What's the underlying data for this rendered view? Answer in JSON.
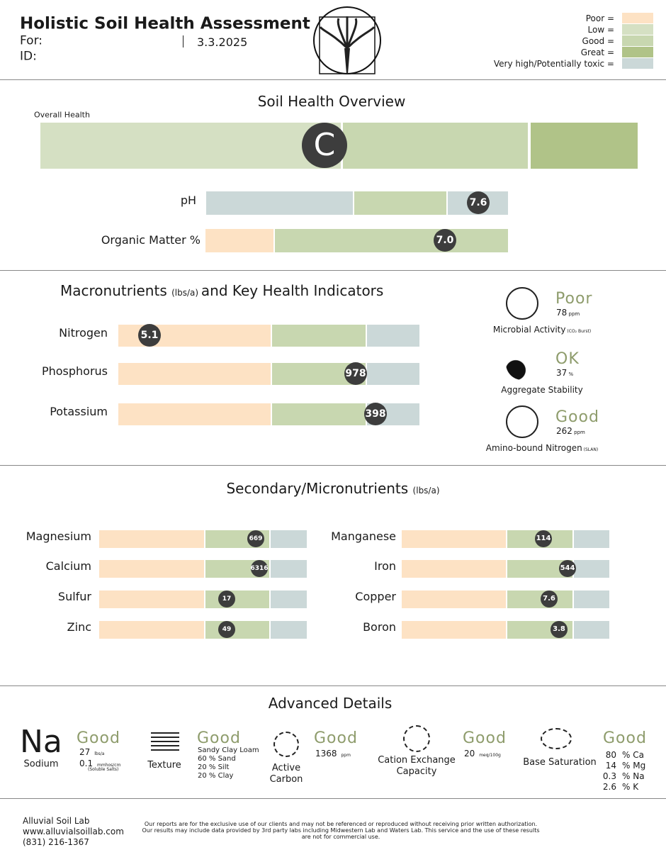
{
  "header": {
    "title": "Holistic Soil Health Assessment",
    "for_label": "For:",
    "id_label": "ID:",
    "date": "3.3.2025"
  },
  "legend": [
    {
      "label": "Poor =",
      "color": "#fde2c4"
    },
    {
      "label": "Low =",
      "color": "#d5e0c3"
    },
    {
      "label": "Good =",
      "color": "#c8d7b0"
    },
    {
      "label": "Great =",
      "color": "#b0c388"
    },
    {
      "label": "Very high/Potentially toxic =",
      "color": "#cbd8d8"
    }
  ],
  "overview": {
    "title": "Soil Health Overview",
    "overall_label": "Overall Health",
    "grade": "C",
    "ph": {
      "label": "pH",
      "value": "7.6"
    },
    "organic_matter": {
      "label": "Organic Matter %",
      "value": "7.0"
    }
  },
  "macronutrients": {
    "title": "Macronutrients",
    "unit": "(lbs/a)",
    "title_end": "and Key Health Indicators",
    "rows": [
      {
        "name": "Nitrogen",
        "value": "5.1"
      },
      {
        "name": "Phosphorus",
        "value": "978"
      },
      {
        "name": "Potassium",
        "value": "398"
      }
    ]
  },
  "indicators": [
    {
      "rating": "Poor",
      "value": "78",
      "unit": "ppm",
      "label": "Microbial Activity",
      "note": "(CO₂ Burst)"
    },
    {
      "rating": "OK",
      "value": "37",
      "unit": "%",
      "label": "Aggregate Stability"
    },
    {
      "rating": "Good",
      "value": "262",
      "unit": "ppm",
      "label": "Amino-bound Nitrogen",
      "note": "(SLAN)"
    }
  ],
  "secondary": {
    "title": "Secondary/Micronutrients",
    "unit": "(lbs/a)",
    "left": [
      {
        "name": "Magnesium",
        "value": "669"
      },
      {
        "name": "Calcium",
        "value": "6316"
      },
      {
        "name": "Sulfur",
        "value": "17"
      },
      {
        "name": "Zinc",
        "value": "49"
      }
    ],
    "right": [
      {
        "name": "Manganese",
        "value": "114"
      },
      {
        "name": "Iron",
        "value": "544"
      },
      {
        "name": "Copper",
        "value": "7.6"
      },
      {
        "name": "Boron",
        "value": "3.8"
      }
    ]
  },
  "advanced": {
    "title": "Advanced Details",
    "items": [
      {
        "symbol": "Na",
        "label": "Sodium",
        "rating": "Good",
        "lines": [
          {
            "value": "27",
            "unit": "lbs/a"
          },
          {
            "value": "0.1",
            "unit": "mmhos/cm",
            "note": "(Soluble Salts)"
          }
        ]
      },
      {
        "label": "Texture",
        "rating": "Good",
        "lines": [
          {
            "value": "Sandy Clay Loam"
          },
          {
            "value": "60 % Sand"
          },
          {
            "value": "20 % Silt"
          },
          {
            "value": "20 % Clay"
          }
        ]
      },
      {
        "label": "Active Carbon",
        "rating": "Good",
        "lines": [
          {
            "value": "1368",
            "unit": "ppm"
          }
        ]
      },
      {
        "label": "Cation Exchange Capacity",
        "rating": "Good",
        "lines": [
          {
            "value": "20",
            "unit": "meq/100g"
          }
        ]
      },
      {
        "label": "Base Saturation",
        "rating": "Good",
        "lines": [
          {
            "value": "80",
            "unit": "% Ca"
          },
          {
            "value": "14",
            "unit": "% Mg"
          },
          {
            "value": "0.3",
            "unit": "% Na"
          },
          {
            "value": "2.6",
            "unit": "% K"
          }
        ]
      }
    ]
  },
  "footer": {
    "company": [
      "Alluvial Soil Lab",
      "www.alluvialsoillab.com",
      "(831) 216-1367"
    ],
    "disclaimer": [
      "Our reports are for the exclusive use of our clients and may not be referenced or reproduced without receiving prior written authorization.",
      "Our results may include data provided by 3rd party labs including Midwestern Lab and Waters Lab.  This service and the use of these results",
      "are not for commercial use."
    ]
  }
}
